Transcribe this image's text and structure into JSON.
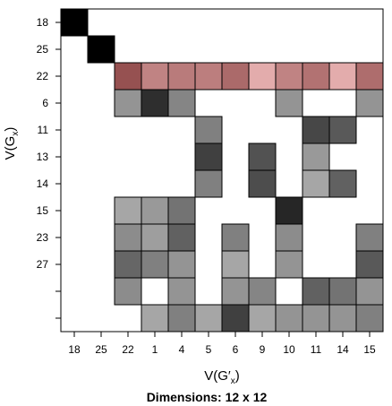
{
  "chart_data": {
    "type": "heatmap",
    "xlabel": "V(G′x)",
    "ylabel": "V(Gx)",
    "caption": "Dimensions: 12 x 12",
    "x_tick_labels": [
      "18",
      "25",
      "22",
      "1",
      "4",
      "5",
      "6",
      "9",
      "10",
      "11",
      "14",
      "15"
    ],
    "y_tick_labels": [
      "18",
      "25",
      "22",
      "6",
      "11",
      "13",
      "14",
      "15",
      "23",
      "27",
      "",
      ""
    ],
    "color_scale": "grayscale intensity 0 (white) to 1 (black); highlighted row uses red tint",
    "highlight_row_index": 2,
    "highlight_color": "#ff0000",
    "matrix": [
      [
        1.0,
        0,
        0,
        0,
        0,
        0,
        0,
        0,
        0,
        0,
        0,
        0
      ],
      [
        0,
        1.0,
        0,
        0,
        0,
        0,
        0,
        0,
        0,
        0,
        0,
        0
      ],
      [
        0,
        0,
        0.75,
        0.45,
        0.5,
        0.48,
        0.6,
        0.2,
        0.45,
        0.55,
        0.2,
        0.58
      ],
      [
        0,
        0,
        0.42,
        0.82,
        0.48,
        0,
        0,
        0,
        0.42,
        0,
        0,
        0.42
      ],
      [
        0,
        0,
        0,
        0,
        0,
        0.5,
        0,
        0,
        0,
        0.72,
        0.65,
        0
      ],
      [
        0,
        0,
        0,
        0,
        0,
        0.75,
        0,
        0.68,
        0,
        0.4,
        0,
        0
      ],
      [
        0,
        0,
        0,
        0,
        0,
        0.5,
        0,
        0.7,
        0,
        0.35,
        0.62,
        0
      ],
      [
        0,
        0,
        0.35,
        0.4,
        0.55,
        0,
        0,
        0,
        0.85,
        0,
        0,
        0
      ],
      [
        0,
        0,
        0.45,
        0.38,
        0.62,
        0,
        0.5,
        0,
        0.45,
        0,
        0,
        0.5
      ],
      [
        0,
        0,
        0.6,
        0.5,
        0.42,
        0,
        0.35,
        0,
        0.42,
        0,
        0,
        0.65
      ],
      [
        0,
        0,
        0.45,
        0,
        0.42,
        0,
        0.42,
        0.48,
        0,
        0.62,
        0.55,
        0.42
      ],
      [
        0,
        0,
        0,
        0.35,
        0.5,
        0.35,
        0.75,
        0.35,
        0.42,
        0.42,
        0.42,
        0.5
      ]
    ]
  }
}
